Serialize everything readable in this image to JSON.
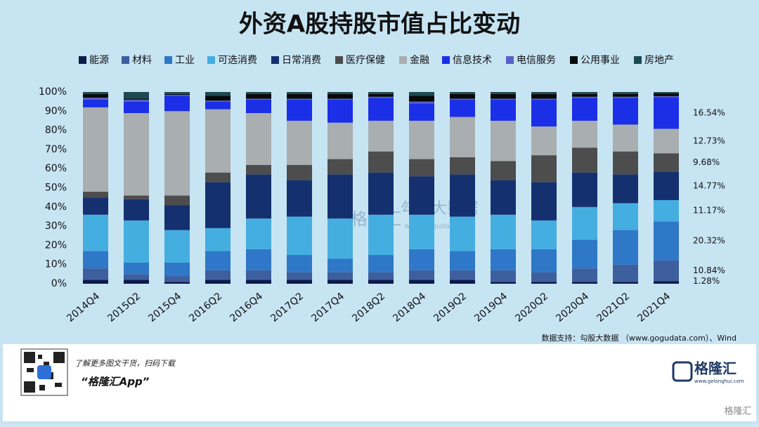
{
  "chart_data": {
    "type": "stacked_bar",
    "title": "外资A股持股市值占比变动",
    "categories": [
      "2014Q4",
      "2015Q2",
      "2015Q4",
      "2016Q2",
      "2016Q4",
      "2017Q2",
      "2017Q4",
      "2018Q2",
      "2018Q4",
      "2019Q2",
      "2019Q4",
      "2020Q2",
      "2020Q4",
      "2021Q2",
      "2021Q4"
    ],
    "series": [
      {
        "name": "能源",
        "color": "#0d1b4a",
        "values": [
          2,
          2,
          1,
          2,
          2,
          2,
          2,
          2,
          2,
          2,
          1,
          1,
          1,
          1,
          1.28
        ]
      },
      {
        "name": "材料",
        "color": "#3d5f9e",
        "values": [
          6,
          3,
          3,
          5,
          5,
          4,
          4,
          4,
          5,
          5,
          6,
          5,
          7,
          9,
          10.84
        ]
      },
      {
        "name": "工业",
        "color": "#2e78c7",
        "values": [
          9,
          6,
          7,
          10,
          11,
          9,
          7,
          9,
          11,
          10,
          11,
          12,
          15,
          18,
          20.32
        ]
      },
      {
        "name": "可选消费",
        "color": "#45aee0",
        "values": [
          19,
          22,
          17,
          12,
          16,
          20,
          21,
          21,
          18,
          18,
          18,
          15,
          17,
          14,
          11.17
        ]
      },
      {
        "name": "日常消费",
        "color": "#14306e",
        "values": [
          9,
          11,
          13,
          24,
          23,
          19,
          23,
          22,
          20,
          22,
          18,
          20,
          18,
          15,
          14.77
        ]
      },
      {
        "name": "医疗保健",
        "color": "#4d4d4d",
        "values": [
          3,
          2,
          5,
          5,
          5,
          8,
          8,
          11,
          9,
          9,
          10,
          14,
          13,
          12,
          9.68
        ]
      },
      {
        "name": "金融",
        "color": "#a9aeb0",
        "values": [
          44,
          43,
          44,
          33,
          27,
          23,
          19,
          16,
          20,
          21,
          21,
          15,
          14,
          14,
          12.73
        ]
      },
      {
        "name": "信息技术",
        "color": "#1b2fe6",
        "values": [
          4,
          6,
          8,
          4,
          7,
          11,
          12,
          12,
          9,
          9,
          11,
          14,
          12,
          14,
          16.54
        ]
      },
      {
        "name": "电信服务",
        "color": "#5a5fc8",
        "values": [
          1,
          1,
          0.5,
          0.5,
          0.5,
          0.5,
          0.5,
          0.5,
          1,
          0.5,
          0.5,
          0.5,
          0.5,
          0.5,
          0.5
        ]
      },
      {
        "name": "公用事业",
        "color": "#0a0a0a",
        "values": [
          2,
          0.5,
          0.5,
          2.5,
          2.5,
          2.5,
          2.5,
          1.5,
          3,
          2.5,
          2.5,
          2.5,
          1.5,
          1.5,
          1.5
        ]
      },
      {
        "name": "房地产",
        "color": "#1d4a52",
        "values": [
          1,
          3.5,
          1,
          2,
          1,
          1,
          1,
          1,
          2,
          1,
          1,
          1,
          1,
          1,
          0.67
        ]
      }
    ],
    "annotations": [
      "1.28%",
      "10.84%",
      "20.32%",
      "11.17%",
      "14.77%",
      "9.68%",
      "12.73%",
      "16.54%"
    ],
    "ylim": [
      0,
      100
    ],
    "yticks": [
      {
        "value": 0,
        "label": "0%"
      },
      {
        "value": 10,
        "label": "10%"
      },
      {
        "value": 20,
        "label": "20%"
      },
      {
        "value": 30,
        "label": "30%"
      },
      {
        "value": 40,
        "label": "40%"
      },
      {
        "value": 50,
        "label": "50%"
      },
      {
        "value": 60,
        "label": "60%"
      },
      {
        "value": 70,
        "label": "70%"
      },
      {
        "value": 80,
        "label": "80%"
      },
      {
        "value": 90,
        "label": "90%"
      },
      {
        "value": 100,
        "label": "100%"
      }
    ],
    "grid": false,
    "source": "数据支持：勾股大数据 （www.gogudata.com）、Wind"
  },
  "watermark": {
    "brand": "格隆汇",
    "data": "勾股大数据",
    "url": "www.gogudata.com"
  },
  "footer": {
    "caption": "了解更多图文干货，扫码下载",
    "app": "“格隆汇App”",
    "logo": "格隆汇",
    "logo_url": "www.gelonghui.com",
    "corner": "格隆汇"
  }
}
